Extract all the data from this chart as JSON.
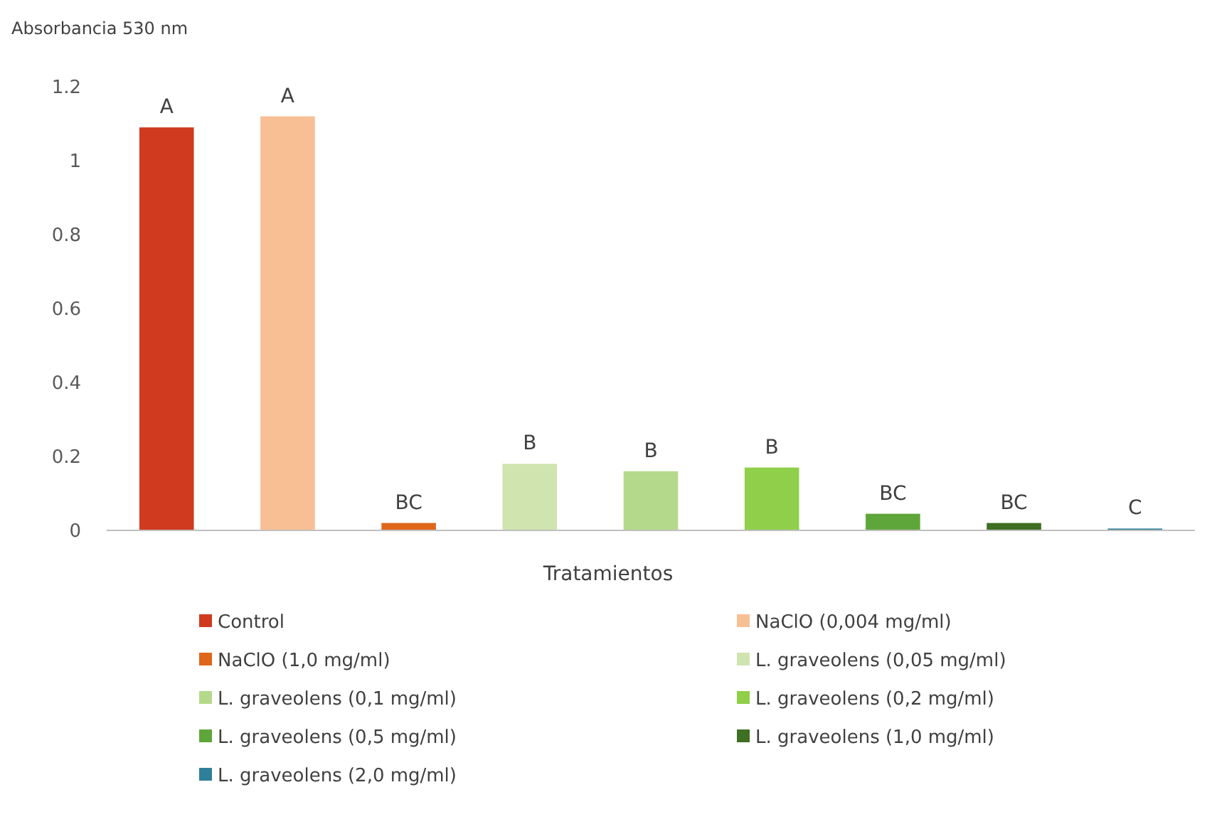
{
  "chart_data": {
    "type": "bar",
    "ylabel": "Absorbancia 530 nm",
    "xlabel": "Tratamientos",
    "categories": [
      null,
      null,
      null,
      null,
      null,
      null,
      null,
      null,
      null
    ],
    "series": [
      {
        "name": "Control",
        "color": "#d03a1e",
        "values": [
          1.09,
          null,
          null,
          null,
          null,
          null,
          null,
          null,
          null
        ]
      },
      {
        "name": "NaClO (0,004 mg/ml)",
        "color": "#f9bf94",
        "values": [
          null,
          1.12,
          null,
          null,
          null,
          null,
          null,
          null,
          null
        ]
      },
      {
        "name": "NaClO (1,0 mg/ml)",
        "color": "#e0661a",
        "values": [
          null,
          null,
          0.02,
          null,
          null,
          null,
          null,
          null,
          null
        ]
      },
      {
        "name": "L. graveolens (0,05 mg/ml)",
        "color": "#cfe4ae",
        "values": [
          null,
          null,
          null,
          0.18,
          null,
          null,
          null,
          null,
          null
        ]
      },
      {
        "name": "L. graveolens (0,1 mg/ml)",
        "color": "#b5d98a",
        "values": [
          null,
          null,
          null,
          null,
          0.16,
          null,
          null,
          null,
          null
        ]
      },
      {
        "name": "L. graveolens (0,2 mg/ml)",
        "color": "#8fcf4a",
        "values": [
          null,
          null,
          null,
          null,
          null,
          0.17,
          null,
          null,
          null
        ]
      },
      {
        "name": "L. graveolens (0,5 mg/ml)",
        "color": "#5ea63a",
        "values": [
          null,
          null,
          null,
          null,
          null,
          null,
          0.045,
          null,
          null
        ]
      },
      {
        "name": "L. graveolens (1,0 mg/ml)",
        "color": "#3f6f22",
        "values": [
          null,
          null,
          null,
          null,
          null,
          null,
          null,
          0.02,
          null
        ]
      },
      {
        "name": "L. graveolens (2,0 mg/ml)",
        "color": "#2f7f99",
        "values": [
          null,
          null,
          null,
          null,
          null,
          null,
          null,
          null,
          0.005
        ]
      }
    ],
    "annotations": [
      "A",
      "A",
      "BC",
      "B",
      "B",
      "B",
      "BC",
      "BC",
      "C"
    ],
    "ylim": [
      0,
      1.2
    ],
    "yticks": [
      0,
      0.2,
      0.4,
      0.6,
      0.8,
      1,
      1.2
    ],
    "grid": false,
    "legend": "bottom"
  }
}
